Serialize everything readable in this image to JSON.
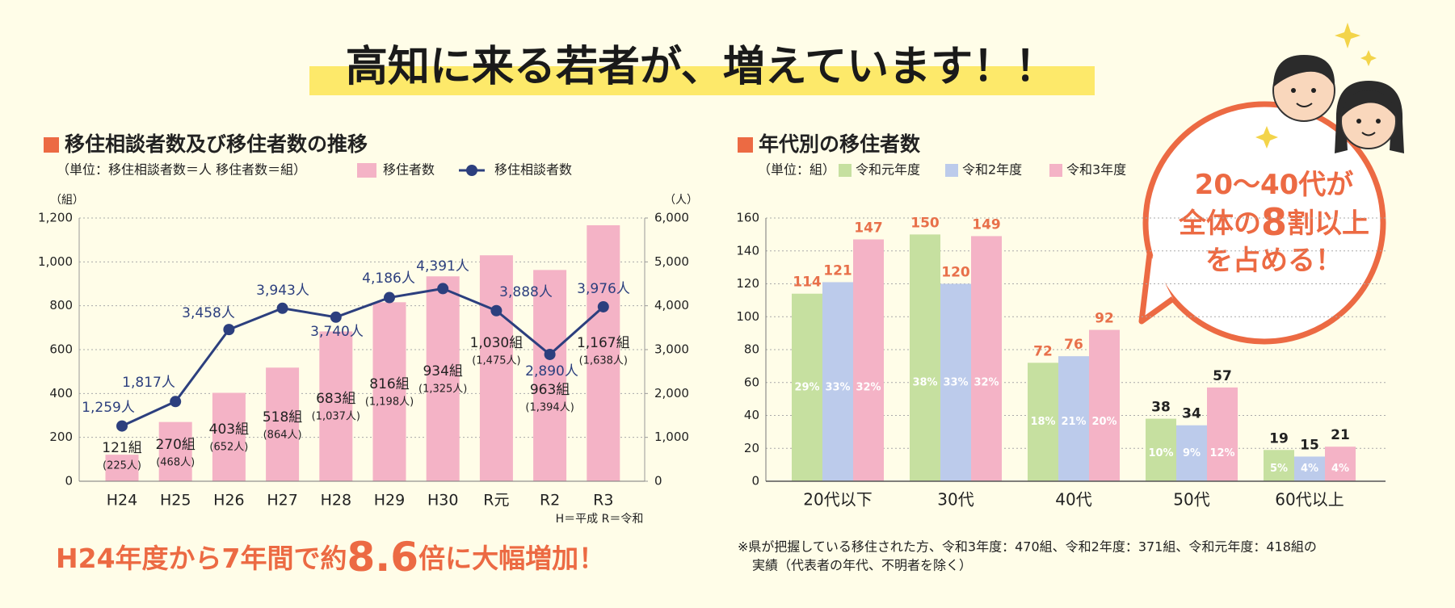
{
  "title": "高知に来る若者が、増えています！！",
  "headline": [
    "H24年度から7年間で約",
    "8.6",
    "倍に大幅増加！"
  ],
  "callout": {
    "lines": [
      [
        "20〜40代が"
      ],
      [
        "全体の",
        "8",
        "割以上"
      ],
      [
        "を占める！"
      ]
    ]
  },
  "chart_data": [
    {
      "type": "combo",
      "title": "移住相談者数及び移住者数の推移",
      "subtitle": "（単位：移住相談者数＝人 移住者数＝組）",
      "y_label": "（組）",
      "y2_label": "（人）",
      "note": "H＝平成 R＝令和",
      "categories": [
        "H24",
        "H25",
        "H26",
        "H27",
        "H28",
        "H29",
        "H30",
        "R元",
        "R2",
        "R3"
      ],
      "series": [
        {
          "name": "移住者数",
          "kind": "bar",
          "color": "#f4b3c6",
          "values": [
            121,
            270,
            403,
            518,
            683,
            816,
            934,
            1030,
            963,
            1167
          ],
          "value_labels": [
            "121組",
            "270組",
            "403組",
            "518組",
            "683組",
            "816組",
            "934組",
            "1,030組",
            "963組",
            "1,167組"
          ],
          "sub_labels": [
            "(225人)",
            "(468人)",
            "(652人)",
            "(864人)",
            "(1,037人)",
            "(1,198人)",
            "(1,325人)",
            "(1,475人)",
            "(1,394人)",
            "(1,638人)"
          ]
        },
        {
          "name": "移住相談者数",
          "kind": "line",
          "axis": "y2",
          "color": "#2c3f7e",
          "values": [
            1259,
            1817,
            3458,
            3943,
            3740,
            4186,
            4391,
            3888,
            2890,
            3976
          ],
          "value_labels": [
            "1,259人",
            "1,817人",
            "3,458人",
            "3,943人",
            "3,740人",
            "4,186人",
            "4,391人",
            "3,888人",
            "2,890人",
            "3,976人"
          ]
        }
      ],
      "ylim": [
        0,
        1200
      ],
      "yticks": [
        0,
        200,
        400,
        600,
        800,
        {
          "value": 1000,
          "label": "1,000"
        },
        {
          "value": 1200,
          "label": "1,200"
        }
      ],
      "y2lim": [
        0,
        6000
      ],
      "y2ticks": [
        0,
        {
          "value": 1000,
          "label": "1,000"
        },
        {
          "value": 2000,
          "label": "2,000"
        },
        {
          "value": 3000,
          "label": "3,000"
        },
        {
          "value": 4000,
          "label": "4,000"
        },
        {
          "value": 5000,
          "label": "5,000"
        },
        {
          "value": 6000,
          "label": "6,000"
        }
      ],
      "grid": true
    },
    {
      "type": "grouped_bar",
      "title": "年代別の移住者数",
      "subtitle": "（単位：組）",
      "categories": [
        "20代以下",
        "30代",
        "40代",
        "50代",
        "60代以上"
      ],
      "series": [
        {
          "name": "令和元年度",
          "color": "#c6e0a0",
          "values": [
            114,
            150,
            72,
            38,
            19
          ],
          "share_labels": [
            "29%",
            "38%",
            "18%",
            "10%",
            "5%"
          ]
        },
        {
          "name": "令和2年度",
          "color": "#bccbeb",
          "values": [
            121,
            120,
            76,
            34,
            15
          ],
          "share_labels": [
            "33%",
            "33%",
            "21%",
            "9%",
            "4%"
          ]
        },
        {
          "name": "令和3年度",
          "color": "#f4b3c6",
          "values": [
            147,
            149,
            92,
            57,
            21
          ],
          "share_labels": [
            "32%",
            "32%",
            "20%",
            "12%",
            "4%"
          ]
        }
      ],
      "value_label_colors": [
        "#e8704a",
        "#e8704a",
        "#e8704a",
        "#222222",
        "#222222"
      ],
      "ylim": [
        0,
        160
      ],
      "yticks": [
        0,
        20,
        40,
        60,
        80,
        100,
        120,
        140,
        160
      ],
      "grid": true,
      "notes": [
        "※県が把握している移住された方、令和3年度：470組、令和2年度：371組、令和元年度：418組の",
        "実績（代表者の年代、不明者を除く）"
      ]
    }
  ]
}
